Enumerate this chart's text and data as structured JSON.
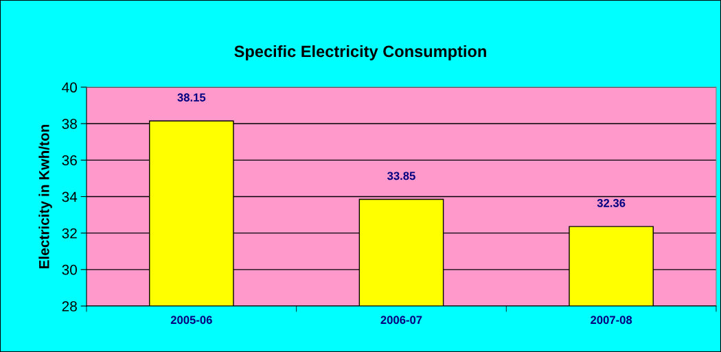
{
  "chart_data": {
    "type": "bar",
    "title": "Specific Electricity Consumption",
    "ylabel": "Electricity in Kwh/ton",
    "categories": [
      "2005-06",
      "2006-07",
      "2007-08"
    ],
    "values": [
      38.15,
      33.85,
      32.36
    ],
    "color": "#ffff00",
    "ylim": [
      28,
      40
    ],
    "yticks": [
      28,
      30,
      32,
      34,
      36,
      38,
      40
    ],
    "grid": "y",
    "data_labels": true,
    "legend": false
  }
}
